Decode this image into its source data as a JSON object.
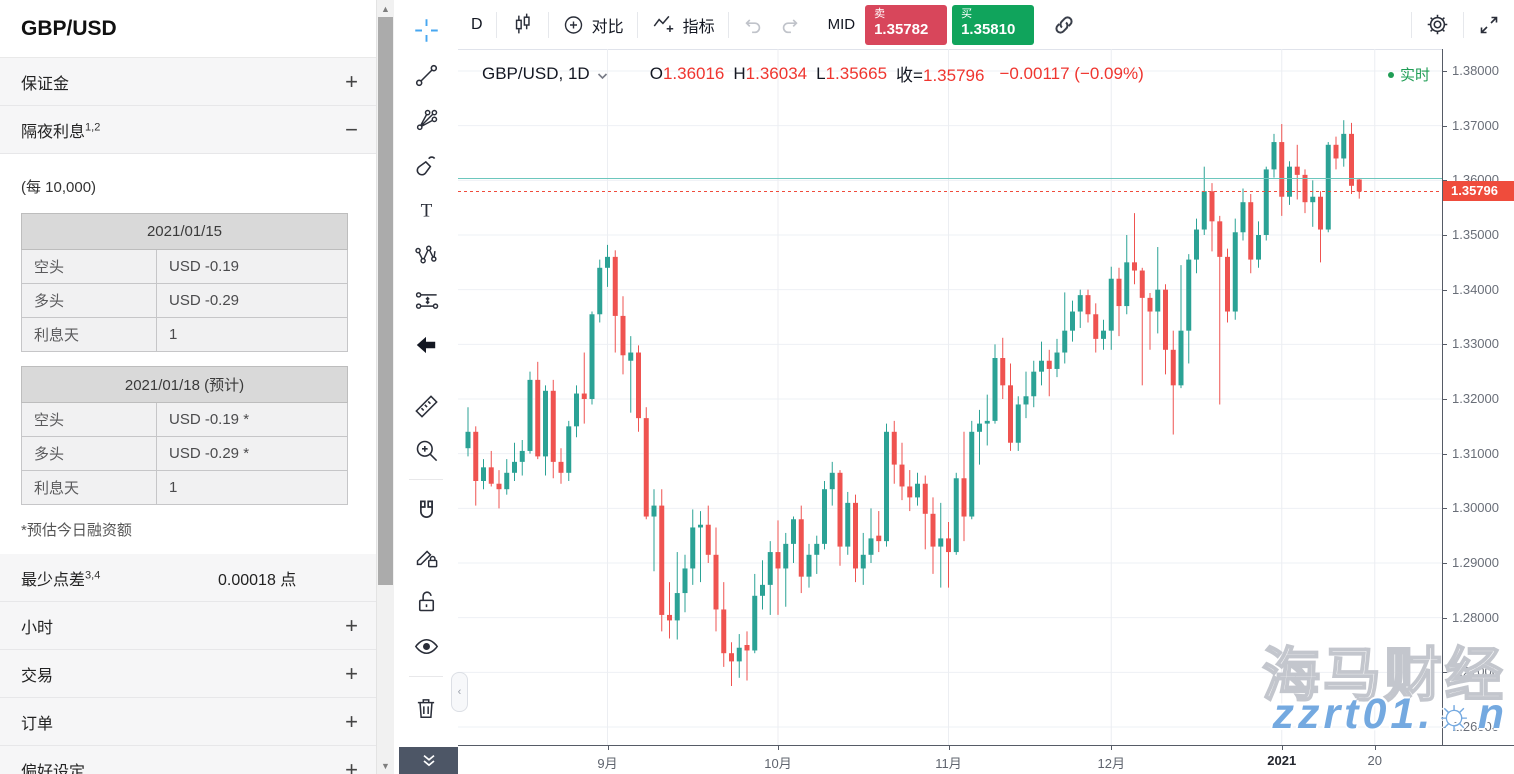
{
  "sidebar": {
    "title": "GBP/USD",
    "sections": [
      {
        "label": "保证金",
        "sup": "",
        "action": "+"
      },
      {
        "label": "隔夜利息",
        "sup": "1,2",
        "action": "−"
      }
    ],
    "overnight": {
      "unit_note": "(每 10,000)",
      "tables": [
        {
          "date": "2021/01/15",
          "rows": [
            [
              "空头",
              "USD -0.19"
            ],
            [
              "多头",
              "USD -0.29"
            ],
            [
              "利息天",
              "1"
            ]
          ]
        },
        {
          "date": "2021/01/18 (预计)",
          "rows": [
            [
              "空头",
              "USD -0.19 *"
            ],
            [
              "多头",
              "USD -0.29 *"
            ],
            [
              "利息天",
              "1"
            ]
          ]
        }
      ],
      "footnote": "*预估今日融资额"
    },
    "min_spread": {
      "label": "最少点差",
      "sup": "3,4",
      "value": "0.00018 点"
    },
    "collapsed": [
      {
        "label": "小时",
        "action": "+"
      },
      {
        "label": "交易",
        "action": "+"
      },
      {
        "label": "订单",
        "action": "+"
      },
      {
        "label": "偏好设定",
        "action": "+"
      }
    ]
  },
  "toolbar": {
    "interval": "D",
    "compare_label": "对比",
    "indicators_label": "指标",
    "mid_label": "MID",
    "sell_label": "卖",
    "sell_price": "1.35782",
    "buy_label": "买",
    "buy_price": "1.35810"
  },
  "drawing_tools": [
    "crosshair",
    "trend-line",
    "gann-fib",
    "brush",
    "text",
    "xabcd-pattern",
    "projection",
    "arrow-mark",
    "ruler",
    "zoom-in",
    "magnet",
    "drawing-lock",
    "lock-all",
    "hide-all",
    "remove-objects",
    "object-tree"
  ],
  "chart": {
    "legend": {
      "symbol": "GBP/USD, 1D",
      "o_label": "O",
      "o": "1.36016",
      "h_label": "H",
      "h": "1.36034",
      "l_label": "L",
      "l": "1.35665",
      "close_label": "收=",
      "close": "1.35796",
      "change": "−0.00117 (−0.09%)"
    },
    "realtime_label": "实时",
    "price_label": "1.35796"
  },
  "watermark": {
    "line1": "海马财经",
    "line2": "zzrt01.cn"
  },
  "chart_data": {
    "type": "candlestick",
    "symbol": "GBP/USD",
    "interval": "1D",
    "up_color": "#2ba295",
    "down_color": "#ef5350",
    "current_price": 1.35796,
    "high_line": 1.36034,
    "y_axis": {
      "min": 1.26,
      "max": 1.38,
      "ticks": [
        "1.38000",
        "1.37000",
        "1.36000",
        "1.35000",
        "1.34000",
        "1.33000",
        "1.32000",
        "1.31000",
        "1.30000",
        "1.29000",
        "1.28000",
        "1.27000",
        "1.26000"
      ]
    },
    "x_axis": {
      "ticks": [
        {
          "i": 18,
          "label": "9月"
        },
        {
          "i": 40,
          "label": "10月"
        },
        {
          "i": 62,
          "label": "11月"
        },
        {
          "i": 83,
          "label": "12月"
        },
        {
          "i": 105,
          "label": "2021",
          "strong": true
        },
        {
          "i": 117,
          "label": "20"
        }
      ]
    },
    "candles": [
      [
        1.311,
        1.3185,
        1.3095,
        1.314
      ],
      [
        1.314,
        1.315,
        1.3005,
        1.305
      ],
      [
        1.305,
        1.309,
        1.3035,
        1.3075
      ],
      [
        1.3075,
        1.3105,
        1.304,
        1.3045
      ],
      [
        1.3045,
        1.307,
        1.3,
        1.3035
      ],
      [
        1.3035,
        1.309,
        1.3025,
        1.3065
      ],
      [
        1.3065,
        1.312,
        1.305,
        1.3085
      ],
      [
        1.3085,
        1.3125,
        1.306,
        1.3105
      ],
      [
        1.3105,
        1.325,
        1.31,
        1.3235
      ],
      [
        1.3235,
        1.3268,
        1.309,
        1.3095
      ],
      [
        1.3095,
        1.3225,
        1.306,
        1.3215
      ],
      [
        1.3215,
        1.3235,
        1.3055,
        1.3085
      ],
      [
        1.3085,
        1.311,
        1.3045,
        1.3065
      ],
      [
        1.3065,
        1.316,
        1.305,
        1.315
      ],
      [
        1.315,
        1.3225,
        1.313,
        1.321
      ],
      [
        1.321,
        1.3285,
        1.3155,
        1.32
      ],
      [
        1.32,
        1.336,
        1.319,
        1.3355
      ],
      [
        1.3355,
        1.3455,
        1.334,
        1.344
      ],
      [
        1.344,
        1.3482,
        1.3405,
        1.346
      ],
      [
        1.346,
        1.3472,
        1.3285,
        1.3352
      ],
      [
        1.3352,
        1.3388,
        1.3245,
        1.328
      ],
      [
        1.327,
        1.3315,
        1.3175,
        1.3285
      ],
      [
        1.3285,
        1.3298,
        1.314,
        1.3165
      ],
      [
        1.3165,
        1.3185,
        1.298,
        1.2985
      ],
      [
        1.2985,
        1.3035,
        1.2885,
        1.3005
      ],
      [
        1.3005,
        1.3035,
        1.2775,
        1.2805
      ],
      [
        1.2805,
        1.2865,
        1.2762,
        1.2795
      ],
      [
        1.2795,
        1.292,
        1.276,
        1.2845
      ],
      [
        1.2845,
        1.2915,
        1.281,
        1.289
      ],
      [
        1.289,
        1.2998,
        1.286,
        1.2965
      ],
      [
        1.2965,
        1.2995,
        1.2865,
        1.297
      ],
      [
        1.297,
        1.3005,
        1.29,
        1.2915
      ],
      [
        1.2915,
        1.2965,
        1.2775,
        1.2815
      ],
      [
        1.2815,
        1.2865,
        1.271,
        1.2735
      ],
      [
        1.2735,
        1.2755,
        1.2675,
        1.272
      ],
      [
        1.272,
        1.277,
        1.269,
        1.2745
      ],
      [
        1.275,
        1.2775,
        1.2685,
        1.274
      ],
      [
        1.274,
        1.288,
        1.2735,
        1.284
      ],
      [
        1.284,
        1.2905,
        1.2815,
        1.286
      ],
      [
        1.286,
        1.294,
        1.2805,
        1.292
      ],
      [
        1.292,
        1.2978,
        1.2805,
        1.289
      ],
      [
        1.289,
        1.2955,
        1.282,
        1.2935
      ],
      [
        1.2935,
        1.2985,
        1.29,
        1.298
      ],
      [
        1.298,
        1.3005,
        1.2845,
        1.2875
      ],
      [
        1.2875,
        1.2935,
        1.2855,
        1.2915
      ],
      [
        1.2915,
        1.295,
        1.288,
        1.2935
      ],
      [
        1.2935,
        1.305,
        1.2925,
        1.3035
      ],
      [
        1.3035,
        1.3085,
        1.3005,
        1.3065
      ],
      [
        1.3065,
        1.307,
        1.2895,
        1.293
      ],
      [
        1.293,
        1.303,
        1.2915,
        1.301
      ],
      [
        1.301,
        1.3025,
        1.2865,
        1.289
      ],
      [
        1.289,
        1.2955,
        1.286,
        1.2915
      ],
      [
        1.2915,
        1.3,
        1.29,
        1.2945
      ],
      [
        1.295,
        1.2995,
        1.292,
        1.294
      ],
      [
        1.294,
        1.3155,
        1.293,
        1.314
      ],
      [
        1.314,
        1.316,
        1.3045,
        1.308
      ],
      [
        1.308,
        1.312,
        1.3015,
        1.304
      ],
      [
        1.304,
        1.307,
        1.2995,
        1.302
      ],
      [
        1.302,
        1.3065,
        1.3005,
        1.3045
      ],
      [
        1.3045,
        1.306,
        1.2925,
        1.299
      ],
      [
        1.299,
        1.302,
        1.288,
        1.293
      ],
      [
        1.293,
        1.301,
        1.2855,
        1.2945
      ],
      [
        1.2945,
        1.2975,
        1.2855,
        1.292
      ],
      [
        1.292,
        1.3065,
        1.2915,
        1.3055
      ],
      [
        1.3055,
        1.314,
        1.294,
        1.2985
      ],
      [
        1.2985,
        1.316,
        1.298,
        1.314
      ],
      [
        1.314,
        1.318,
        1.308,
        1.3155
      ],
      [
        1.3155,
        1.3208,
        1.3115,
        1.316
      ],
      [
        1.316,
        1.33,
        1.3155,
        1.3275
      ],
      [
        1.3275,
        1.3312,
        1.32,
        1.3225
      ],
      [
        1.3225,
        1.3265,
        1.3105,
        1.312
      ],
      [
        1.312,
        1.3205,
        1.3105,
        1.319
      ],
      [
        1.319,
        1.325,
        1.3165,
        1.3205
      ],
      [
        1.3205,
        1.327,
        1.3185,
        1.325
      ],
      [
        1.325,
        1.3305,
        1.3225,
        1.327
      ],
      [
        1.327,
        1.329,
        1.3205,
        1.3255
      ],
      [
        1.3255,
        1.331,
        1.324,
        1.3285
      ],
      [
        1.3285,
        1.3395,
        1.3265,
        1.3325
      ],
      [
        1.3325,
        1.338,
        1.3305,
        1.336
      ],
      [
        1.336,
        1.34,
        1.333,
        1.339
      ],
      [
        1.339,
        1.34,
        1.334,
        1.3355
      ],
      [
        1.3355,
        1.3375,
        1.3285,
        1.331
      ],
      [
        1.331,
        1.3345,
        1.329,
        1.3325
      ],
      [
        1.3325,
        1.3442,
        1.329,
        1.342
      ],
      [
        1.342,
        1.344,
        1.3315,
        1.337
      ],
      [
        1.337,
        1.35,
        1.3355,
        1.345
      ],
      [
        1.345,
        1.354,
        1.341,
        1.3435
      ],
      [
        1.3435,
        1.344,
        1.3225,
        1.3385
      ],
      [
        1.3385,
        1.3394,
        1.329,
        1.336
      ],
      [
        1.336,
        1.3478,
        1.332,
        1.34
      ],
      [
        1.34,
        1.341,
        1.3245,
        1.329
      ],
      [
        1.329,
        1.3325,
        1.3135,
        1.3225
      ],
      [
        1.3225,
        1.3445,
        1.322,
        1.3325
      ],
      [
        1.3325,
        1.3465,
        1.3265,
        1.3455
      ],
      [
        1.3455,
        1.353,
        1.343,
        1.351
      ],
      [
        1.351,
        1.3625,
        1.35,
        1.358
      ],
      [
        1.358,
        1.3595,
        1.347,
        1.3525
      ],
      [
        1.3525,
        1.3535,
        1.319,
        1.346
      ],
      [
        1.346,
        1.3475,
        1.334,
        1.336
      ],
      [
        1.336,
        1.353,
        1.3345,
        1.3505
      ],
      [
        1.3505,
        1.3585,
        1.349,
        1.356
      ],
      [
        1.356,
        1.3575,
        1.343,
        1.3455
      ],
      [
        1.3455,
        1.3525,
        1.344,
        1.35
      ],
      [
        1.35,
        1.3625,
        1.349,
        1.362
      ],
      [
        1.362,
        1.3685,
        1.3605,
        1.367
      ],
      [
        1.367,
        1.3703,
        1.3535,
        1.357
      ],
      [
        1.357,
        1.3635,
        1.3555,
        1.3625
      ],
      [
        1.3625,
        1.3665,
        1.3565,
        1.361
      ],
      [
        1.361,
        1.362,
        1.354,
        1.356
      ],
      [
        1.356,
        1.36,
        1.3515,
        1.357
      ],
      [
        1.357,
        1.358,
        1.345,
        1.351
      ],
      [
        1.351,
        1.367,
        1.3505,
        1.3665
      ],
      [
        1.3665,
        1.368,
        1.362,
        1.364
      ],
      [
        1.364,
        1.371,
        1.3625,
        1.3685
      ],
      [
        1.3685,
        1.3705,
        1.3575,
        1.359
      ],
      [
        1.36016,
        1.36034,
        1.35665,
        1.35796
      ]
    ]
  }
}
